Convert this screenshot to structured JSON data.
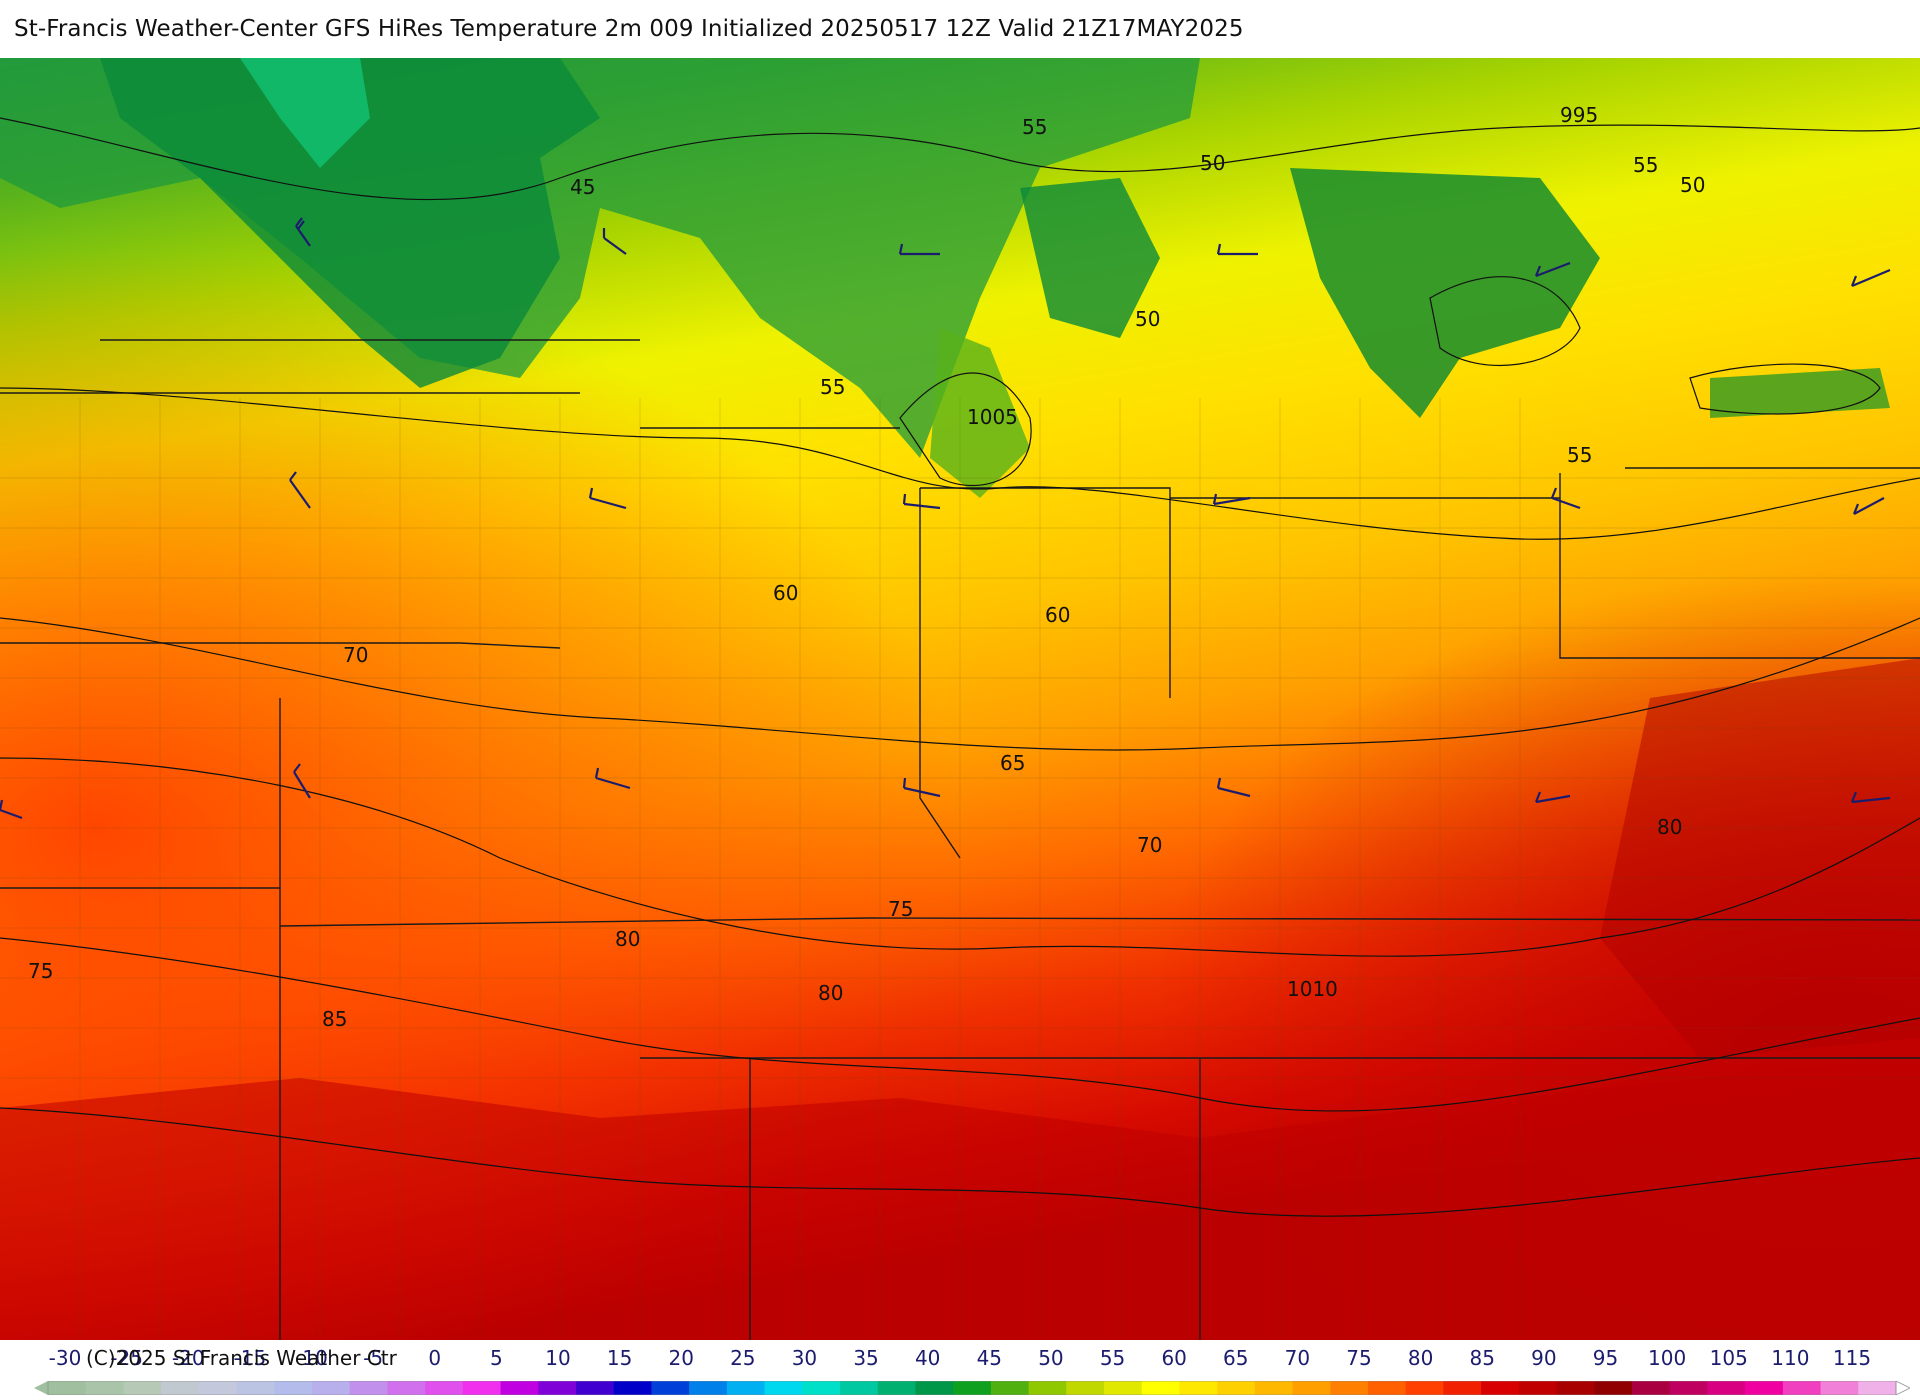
{
  "title": "St-Francis Weather-Center GFS HiRes Temperature 2m  009 Initialized 20250517 12Z Valid 21Z17MAY2025",
  "copyright": "(C)2025 St Francis Weather Ctr",
  "colorbar": {
    "tick_labels": [
      "-30",
      "-25",
      "-20",
      "-15",
      "-10",
      "-5",
      "0",
      "5",
      "10",
      "15",
      "20",
      "25",
      "30",
      "35",
      "40",
      "45",
      "50",
      "55",
      "60",
      "65",
      "70",
      "75",
      "80",
      "85",
      "90",
      "95",
      "100",
      "105",
      "110",
      "115"
    ],
    "colors": [
      "#9fbf9f",
      "#aac4aa",
      "#b6c9b6",
      "#c0c9d0",
      "#c4c8dc",
      "#bcc4e4",
      "#b4bcec",
      "#b8b0ec",
      "#c090ec",
      "#d070ec",
      "#e050ec",
      "#f030ec",
      "#c000e0",
      "#8000d8",
      "#4000d0",
      "#0000c8",
      "#0040d8",
      "#0080e8",
      "#00b0f0",
      "#00d8f0",
      "#00e0c8",
      "#00c8a0",
      "#00b070",
      "#009848",
      "#10a020",
      "#50b010",
      "#90c800",
      "#c0d800",
      "#e0e800",
      "#ffff00",
      "#ffe800",
      "#ffd000",
      "#ffb800",
      "#ffa000",
      "#ff8000",
      "#ff6000",
      "#ff4000",
      "#f02000",
      "#d80000",
      "#c00000",
      "#a80000",
      "#900000",
      "#a80040",
      "#c00060",
      "#d80080",
      "#f000a0",
      "#f040c0",
      "#f080d8",
      "#f0b0e8"
    ]
  },
  "contour_labels": [
    "45",
    "50",
    "50",
    "50",
    "50",
    "55",
    "55",
    "55",
    "55",
    "60",
    "60",
    "65",
    "70",
    "70",
    "75",
    "75",
    "80",
    "80",
    "80",
    "85",
    "995",
    "1005",
    "1010"
  ],
  "wind_barbs_present": true
}
